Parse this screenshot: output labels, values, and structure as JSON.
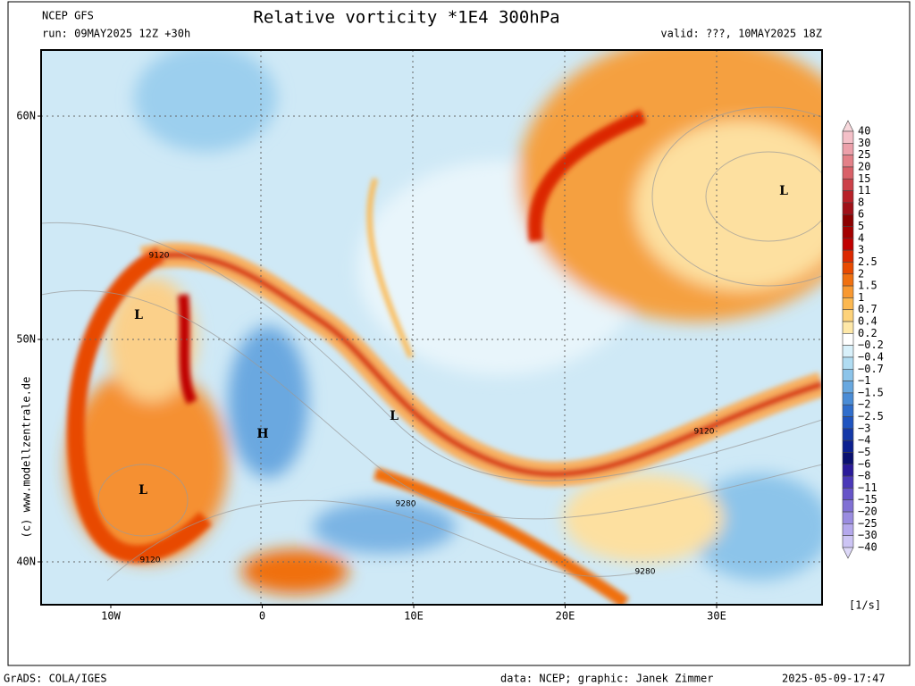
{
  "header": {
    "model": "NCEP GFS",
    "run": "run: 09MAY2025 12Z +30h",
    "title": "Relative vorticity *1E4 300hPa",
    "valid": "valid: ???, 10MAY2025 18Z"
  },
  "map": {
    "lat_labels": [
      "60N",
      "50N",
      "40N"
    ],
    "lon_labels": [
      "10W",
      "0",
      "10E",
      "20E",
      "30E"
    ],
    "annotations": [
      "L",
      "L",
      "L",
      "L",
      "H",
      "9120",
      "9120",
      "9120",
      "9280",
      "9280"
    ]
  },
  "colorbar": {
    "labels": [
      "40",
      "30",
      "25",
      "20",
      "15",
      "11",
      "8",
      "6",
      "5",
      "4",
      "3",
      "2.5",
      "2",
      "1.5",
      "1",
      "0.7",
      "0.4",
      "0.2",
      "−0.2",
      "−0.4",
      "−0.7",
      "−1",
      "−1.5",
      "−2",
      "−2.5",
      "−3",
      "−4",
      "−5",
      "−6",
      "−8",
      "−11",
      "−15",
      "−20",
      "−25",
      "−30",
      "−40"
    ],
    "colors": [
      "#f4c0c8",
      "#eca0aa",
      "#e38088",
      "#d96068",
      "#cc4048",
      "#b82028",
      "#a01018",
      "#8c0000",
      "#a40000",
      "#c00000",
      "#dc2800",
      "#e84a00",
      "#f07010",
      "#f89830",
      "#fcb850",
      "#fdd27a",
      "#fee8a8",
      "#ffffff",
      "#d8f0fa",
      "#b0dcf2",
      "#8cc4ea",
      "#68a8e0",
      "#4a8cd6",
      "#306ecc",
      "#1f54c0",
      "#1438a8",
      "#0c2090",
      "#0a1070",
      "#2a1a9a",
      "#4a38b8",
      "#6654c8",
      "#8070d4",
      "#9a8ce0",
      "#b4a8ec",
      "#ccc4f4"
    ],
    "top_color": "#f8d8dc",
    "bottom_color": "#ddd8f8",
    "unit": "[1/s]"
  },
  "side_text": "(c) www.modellzentrale.de",
  "footer": {
    "software": "GrADS: COLA/IGES",
    "credit": "data: NCEP; graphic: Janek Zimmer",
    "timestamp": "2025-05-09-17:47"
  }
}
